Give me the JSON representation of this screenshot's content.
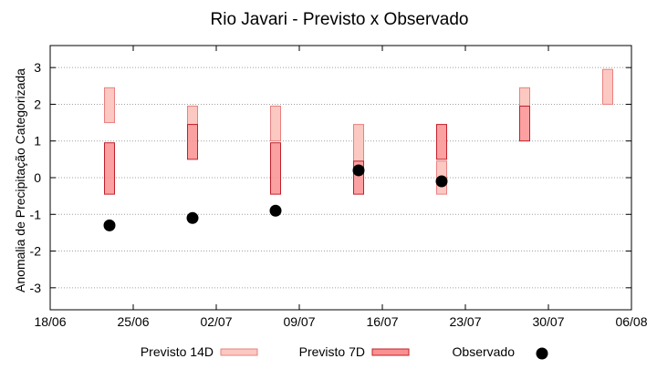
{
  "chart_data": {
    "type": "range-bar-scatter",
    "title": "Rio Javari - Previsto x Observado",
    "ylabel": "Anomalia de Precipitação Categorizada",
    "xlabel": "",
    "ylim": [
      -3.6,
      3.6
    ],
    "yticks": [
      -3,
      -2,
      -1,
      0,
      1,
      2,
      3
    ],
    "ytick_labels": [
      "-3",
      "-2",
      "-1",
      "0",
      "1",
      "2",
      "3"
    ],
    "x_range": [
      "2022-06-18",
      "2022-08-06"
    ],
    "xticks": [
      "2022-06-18",
      "2022-06-25",
      "2022-07-02",
      "2022-07-09",
      "2022-07-16",
      "2022-07-23",
      "2022-07-30",
      "2022-08-06"
    ],
    "xtick_labels": [
      "18/06",
      "25/06",
      "02/07",
      "09/07",
      "16/07",
      "23/07",
      "30/07",
      "06/08"
    ],
    "grid": true,
    "legend": {
      "placement": "bottom",
      "items": [
        {
          "label": "Previsto 14D",
          "kind": "box14"
        },
        {
          "label": "Previsto 7D",
          "kind": "box7"
        },
        {
          "label": "Observado",
          "kind": "dot"
        }
      ]
    },
    "colors": {
      "box14_fill": "#fcc9c2",
      "box14_stroke": "#e98080",
      "box7_fill": "#fb9090",
      "box7_stroke": "#c0202a",
      "observed": "#000000",
      "grid": "#a0a0a0"
    },
    "series": [
      {
        "name": "Previsto 14D",
        "points": [
          {
            "x": "2022-06-23",
            "low": 1.5,
            "high": 2.45
          },
          {
            "x": "2022-06-30",
            "low": 1.45,
            "high": 1.95
          },
          {
            "x": "2022-07-07",
            "low": 1.0,
            "high": 1.95
          },
          {
            "x": "2022-07-14",
            "low": 0.45,
            "high": 1.45
          },
          {
            "x": "2022-07-21",
            "low": -0.45,
            "high": 0.45
          },
          {
            "x": "2022-07-28",
            "low": 1.95,
            "high": 2.45
          },
          {
            "x": "2022-08-04",
            "low": 2.0,
            "high": 2.95
          }
        ]
      },
      {
        "name": "Previsto 7D",
        "points": [
          {
            "x": "2022-06-23",
            "low": -0.45,
            "high": 0.95
          },
          {
            "x": "2022-06-30",
            "low": 0.5,
            "high": 1.45
          },
          {
            "x": "2022-07-07",
            "low": -0.45,
            "high": 0.95
          },
          {
            "x": "2022-07-14",
            "low": -0.45,
            "high": 0.45
          },
          {
            "x": "2022-07-21",
            "low": 0.5,
            "high": 1.45
          },
          {
            "x": "2022-07-28",
            "low": 1.0,
            "high": 1.95
          }
        ]
      },
      {
        "name": "Observado",
        "points": [
          {
            "x": "2022-06-23",
            "y": -1.3
          },
          {
            "x": "2022-06-30",
            "y": -1.1
          },
          {
            "x": "2022-07-07",
            "y": -0.9
          },
          {
            "x": "2022-07-14",
            "y": 0.2
          },
          {
            "x": "2022-07-21",
            "y": -0.1
          }
        ]
      }
    ]
  }
}
